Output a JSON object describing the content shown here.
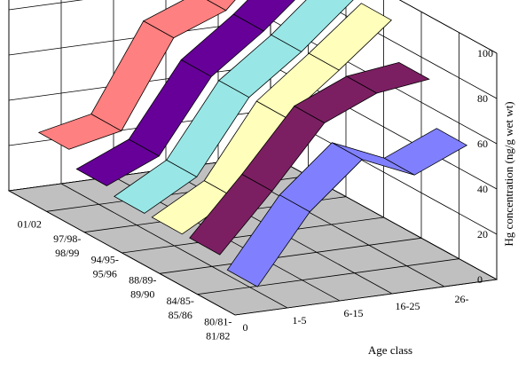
{
  "chart_data": {
    "type": "area",
    "subtype": "3d-ribbon",
    "title": "",
    "xlabel": "Age class",
    "ylabel": "Hg concentration (ng/g wet wt)",
    "zlabel": "",
    "x_categories": [
      "0",
      "1-5",
      "6-15",
      "16-25",
      "26-"
    ],
    "depth_categories": [
      "80/81-81/82",
      "84/85-85/86",
      "88/89-89/90",
      "94/95-95/96",
      "97/98-98/99",
      "01/02"
    ],
    "ylim": [
      0,
      100
    ],
    "yticks": [
      "0",
      "20",
      "40",
      "60",
      "80",
      "100"
    ],
    "grid": true,
    "floor_color": "#c0c0c0",
    "series": [
      {
        "name": "01/02",
        "color": "#ff8080",
        "values": [
          25,
          30,
          68,
          77,
          100
        ]
      },
      {
        "name": "97/98-98/99",
        "color": "#660099",
        "values": [
          18,
          28,
          60,
          77,
          97
        ]
      },
      {
        "name": "94/95-95/96",
        "color": "#99e6e6",
        "values": [
          15,
          28,
          60,
          77,
          97
        ]
      },
      {
        "name": "88/89-89/90",
        "color": "#ffffbb",
        "values": [
          15,
          28,
          60,
          78,
          97
        ]
      },
      {
        "name": "84/85-85/86",
        "color": "#7b1f62",
        "values": [
          15,
          40,
          67,
          77,
          80
        ]
      },
      {
        "name": "80/81-81/82",
        "color": "#8080ff",
        "values": [
          10,
          40,
          60,
          50,
          60
        ]
      }
    ]
  }
}
